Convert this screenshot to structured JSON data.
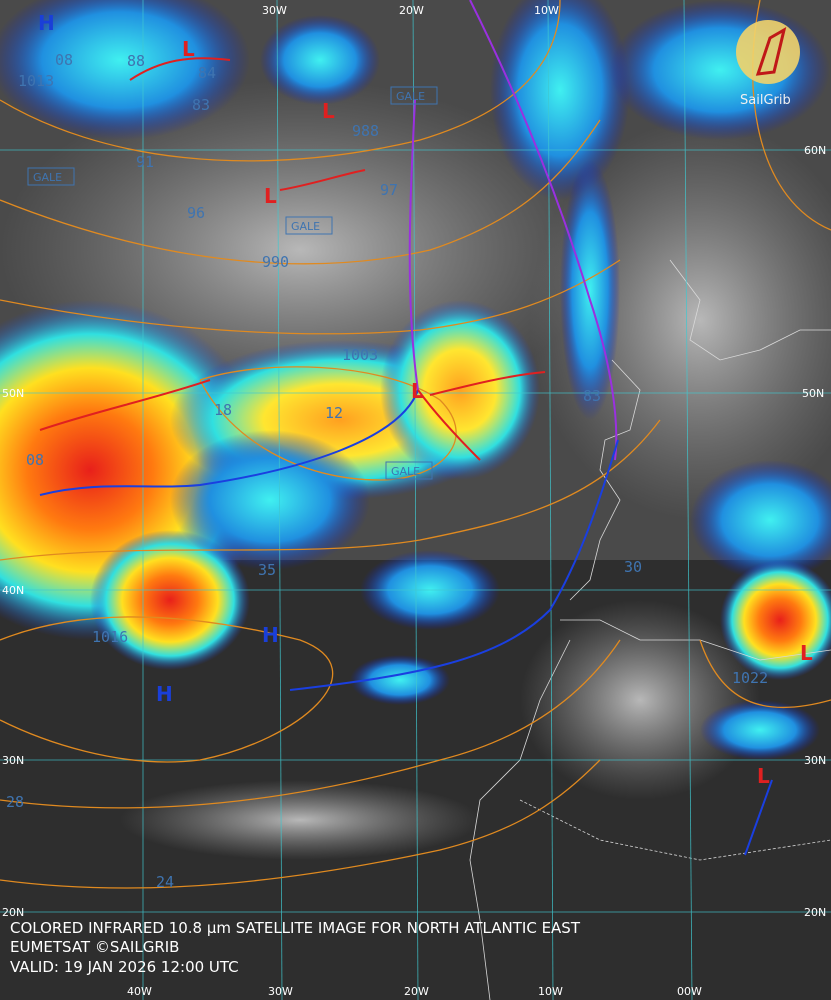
{
  "caption": {
    "line1": "COLORED INFRARED 10.8 µm SATELLITE IMAGE FOR NORTH ATLANTIC EAST",
    "line2": "EUMETSAT ©SAILGRIB",
    "line3": "VALID:  19 JAN 2026 12:00 UTC"
  },
  "logo": "SailGrib",
  "longitude_labels": {
    "top": [
      "30W",
      "20W",
      "10W"
    ],
    "bottom": [
      "40W",
      "30W",
      "20W",
      "10W",
      "00W"
    ]
  },
  "latitude_labels": {
    "left": [
      "50N",
      "40N",
      "30N",
      "20N"
    ],
    "right": [
      "60N",
      "50N",
      "30N",
      "20N"
    ]
  },
  "pressure_labels": [
    "1013",
    "08",
    "88",
    "84",
    "83",
    "91",
    "96",
    "988",
    "97",
    "990",
    "1003",
    "12",
    "18",
    "35",
    "1016",
    "1022",
    "28",
    "24",
    "30",
    "83",
    "08"
  ],
  "highs": [
    "H",
    "H",
    "H"
  ],
  "lows": [
    "L",
    "L",
    "L",
    "L",
    "L",
    "L"
  ],
  "gale_warnings": [
    "GALE",
    "GALE",
    "GALE",
    "GALE"
  ]
}
